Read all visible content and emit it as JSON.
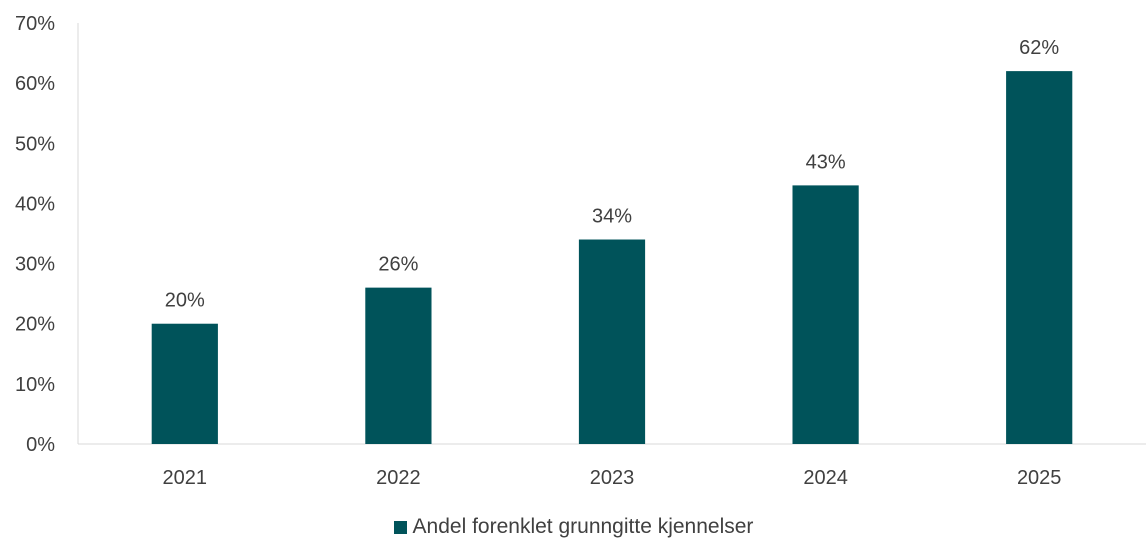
{
  "chart_data": {
    "type": "bar",
    "categories": [
      "2021",
      "2022",
      "2023",
      "2024",
      "2025"
    ],
    "series": [
      {
        "name": "Andel forenklet grunngitte kjennelser",
        "values": [
          20,
          26,
          34,
          43,
          62
        ],
        "color": "#00535A"
      }
    ],
    "data_labels": [
      "20%",
      "26%",
      "34%",
      "43%",
      "62%"
    ],
    "ylim": [
      0,
      70
    ],
    "yticks": [
      0,
      10,
      20,
      30,
      40,
      50,
      60,
      70
    ],
    "ytick_labels": [
      "0%",
      "10%",
      "20%",
      "30%",
      "40%",
      "50%",
      "60%",
      "70%"
    ],
    "title": "",
    "xlabel": "",
    "ylabel": "",
    "grid": false,
    "legend_position": "bottom"
  }
}
